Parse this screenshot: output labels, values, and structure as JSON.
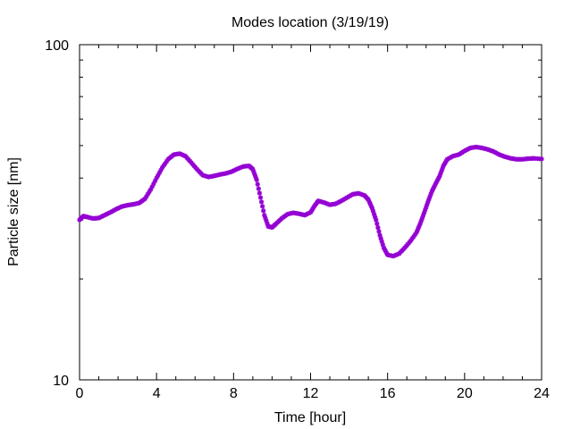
{
  "chart_data": {
    "type": "scatter",
    "title": "Modes location (3/19/19)",
    "xlabel": "Time [hour]",
    "ylabel": "Particle size [nm]",
    "xlim": [
      0,
      24
    ],
    "ylim": [
      10,
      100
    ],
    "yscale": "log",
    "grid": false,
    "legend": "none",
    "x_ticks": [
      0,
      4,
      8,
      12,
      16,
      20,
      24
    ],
    "x_tick_labels": [
      "0",
      "4",
      "8",
      "12",
      "16",
      "20",
      "24"
    ],
    "y_ticks": [
      10,
      100
    ],
    "y_tick_labels": [
      "10",
      "100"
    ],
    "marker_color": "#9400d3",
    "series": [
      {
        "points": [
          [
            0.0,
            30.0
          ],
          [
            0.2,
            30.8
          ],
          [
            0.4,
            30.6
          ],
          [
            0.7,
            30.3
          ],
          [
            1.0,
            30.4
          ],
          [
            1.3,
            31.0
          ],
          [
            1.6,
            31.6
          ],
          [
            1.9,
            32.3
          ],
          [
            2.2,
            32.9
          ],
          [
            2.5,
            33.2
          ],
          [
            2.8,
            33.4
          ],
          [
            3.1,
            33.7
          ],
          [
            3.4,
            34.7
          ],
          [
            3.7,
            37.0
          ],
          [
            4.0,
            40.0
          ],
          [
            4.3,
            43.0
          ],
          [
            4.6,
            45.5
          ],
          [
            4.9,
            47.0
          ],
          [
            5.2,
            47.3
          ],
          [
            5.5,
            46.5
          ],
          [
            5.8,
            44.5
          ],
          [
            6.1,
            42.5
          ],
          [
            6.4,
            40.8
          ],
          [
            6.7,
            40.3
          ],
          [
            7.0,
            40.6
          ],
          [
            7.3,
            41.0
          ],
          [
            7.6,
            41.3
          ],
          [
            7.9,
            41.8
          ],
          [
            8.2,
            42.6
          ],
          [
            8.5,
            43.3
          ],
          [
            8.8,
            43.5
          ],
          [
            9.0,
            42.5
          ],
          [
            9.2,
            39.5
          ],
          [
            9.4,
            35.0
          ],
          [
            9.6,
            31.0
          ],
          [
            9.8,
            28.7
          ],
          [
            10.0,
            28.5
          ],
          [
            10.2,
            29.2
          ],
          [
            10.5,
            30.3
          ],
          [
            10.8,
            31.2
          ],
          [
            11.1,
            31.5
          ],
          [
            11.4,
            31.3
          ],
          [
            11.7,
            31.0
          ],
          [
            12.0,
            31.6
          ],
          [
            12.2,
            33.0
          ],
          [
            12.4,
            34.2
          ],
          [
            12.7,
            33.8
          ],
          [
            13.0,
            33.3
          ],
          [
            13.3,
            33.5
          ],
          [
            13.6,
            34.2
          ],
          [
            13.9,
            35.0
          ],
          [
            14.2,
            35.8
          ],
          [
            14.5,
            36.0
          ],
          [
            14.8,
            35.5
          ],
          [
            15.0,
            34.5
          ],
          [
            15.2,
            32.5
          ],
          [
            15.4,
            30.0
          ],
          [
            15.6,
            27.0
          ],
          [
            15.8,
            24.8
          ],
          [
            16.0,
            23.6
          ],
          [
            16.3,
            23.4
          ],
          [
            16.6,
            23.8
          ],
          [
            16.9,
            24.8
          ],
          [
            17.2,
            26.0
          ],
          [
            17.5,
            27.5
          ],
          [
            17.7,
            29.3
          ],
          [
            17.9,
            31.5
          ],
          [
            18.1,
            34.0
          ],
          [
            18.3,
            36.5
          ],
          [
            18.5,
            38.5
          ],
          [
            18.7,
            40.5
          ],
          [
            18.9,
            43.5
          ],
          [
            19.1,
            45.5
          ],
          [
            19.4,
            46.5
          ],
          [
            19.7,
            47.0
          ],
          [
            20.0,
            48.2
          ],
          [
            20.3,
            49.2
          ],
          [
            20.6,
            49.5
          ],
          [
            20.9,
            49.2
          ],
          [
            21.2,
            48.7
          ],
          [
            21.5,
            48.0
          ],
          [
            21.8,
            47.0
          ],
          [
            22.1,
            46.3
          ],
          [
            22.4,
            45.8
          ],
          [
            22.7,
            45.5
          ],
          [
            23.0,
            45.5
          ],
          [
            23.3,
            45.7
          ],
          [
            23.6,
            45.8
          ],
          [
            24.0,
            45.6
          ]
        ]
      }
    ]
  }
}
